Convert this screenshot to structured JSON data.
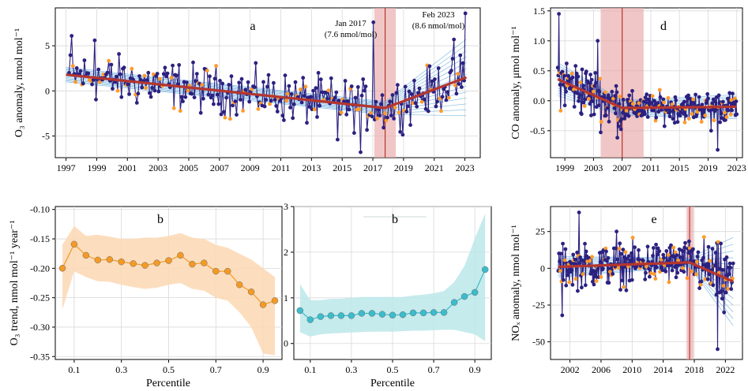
{
  "colors": {
    "series_dark": "#2b2180",
    "highlight": "#ff9a2b",
    "fit": "#b5362f",
    "ensemble": "#6aaedc",
    "band_red": "#e9a8a8",
    "orange": "#f49a24",
    "orange_band": "#fcd8b4",
    "teal": "#3bbccc",
    "teal_band": "#bce8ea",
    "grid": "#d9d9d9"
  },
  "chart_data": [
    {
      "id": "a",
      "type": "line",
      "panel_label": "a",
      "ylabel": "O₃ anomaly, nmol  mol⁻¹",
      "xlim": [
        1996.3,
        2024.0
      ],
      "ylim": [
        -7.4,
        9.2
      ],
      "xticks": [
        1997,
        1999,
        2001,
        2003,
        2005,
        2007,
        2009,
        2011,
        2013,
        2015,
        2017,
        2019,
        2021,
        2023
      ],
      "yticks": [
        -5,
        0,
        5
      ],
      "breakpoint": 2017.8,
      "breakpoint_band": [
        2017.1,
        2018.5
      ],
      "fit": [
        [
          1997.0,
          1.8
        ],
        [
          2017.8,
          -1.9
        ],
        [
          2023.1,
          1.5
        ]
      ],
      "annotations": [
        {
          "text1": "Jan 2017",
          "text2": "(7.6 nmol/mol)",
          "x": 2017.0,
          "y": 7.6
        },
        {
          "text1": "Feb 2023",
          "text2": "(8.6 nmol/mol)",
          "x": 2023.1,
          "y": 8.6
        }
      ]
    },
    {
      "id": "b1",
      "type": "line",
      "panel_label": "b",
      "xlabel": "Percentile",
      "ylabel": "O₃ trend, nmol  mol⁻¹ year⁻¹",
      "xlim": [
        0.02,
        0.98
      ],
      "ylim": [
        -0.355,
        -0.095
      ],
      "xticks": [
        "0.1",
        "0.3",
        "0.5",
        "0.7",
        "0.9"
      ],
      "yticks": [
        "-0.35",
        "-0.30",
        "-0.25",
        "-0.20",
        "-0.15",
        "-0.10"
      ],
      "x": [
        0.05,
        0.1,
        0.15,
        0.2,
        0.25,
        0.3,
        0.35,
        0.4,
        0.45,
        0.5,
        0.55,
        0.6,
        0.65,
        0.7,
        0.75,
        0.8,
        0.85,
        0.9,
        0.95
      ],
      "values": [
        -0.2,
        -0.159,
        -0.178,
        -0.186,
        -0.185,
        -0.189,
        -0.192,
        -0.195,
        -0.191,
        -0.187,
        -0.178,
        -0.193,
        -0.191,
        -0.205,
        -0.205,
        -0.228,
        -0.24,
        -0.262,
        -0.255
      ],
      "upper": [
        -0.16,
        -0.128,
        -0.145,
        -0.143,
        -0.146,
        -0.15,
        -0.15,
        -0.148,
        -0.148,
        -0.145,
        -0.14,
        -0.148,
        -0.15,
        -0.16,
        -0.165,
        -0.175,
        -0.185,
        -0.2,
        -0.215
      ],
      "lower": [
        -0.27,
        -0.205,
        -0.215,
        -0.222,
        -0.223,
        -0.228,
        -0.232,
        -0.235,
        -0.233,
        -0.228,
        -0.225,
        -0.235,
        -0.238,
        -0.25,
        -0.255,
        -0.275,
        -0.3,
        -0.345,
        -0.348
      ]
    },
    {
      "id": "b2",
      "type": "line",
      "panel_label": "b",
      "xlabel": "Percentile",
      "xlim": [
        0.02,
        0.98
      ],
      "ylim": [
        -0.35,
        3.0
      ],
      "xticks": [
        "0.1",
        "0.3",
        "0.5",
        "0.7",
        "0.9"
      ],
      "yticks": [
        "0",
        "1",
        "2",
        "3"
      ],
      "x": [
        0.05,
        0.1,
        0.15,
        0.2,
        0.25,
        0.3,
        0.35,
        0.4,
        0.45,
        0.5,
        0.55,
        0.6,
        0.65,
        0.7,
        0.75,
        0.8,
        0.85,
        0.9,
        0.95
      ],
      "values": [
        0.72,
        0.52,
        0.59,
        0.61,
        0.61,
        0.61,
        0.66,
        0.66,
        0.64,
        0.62,
        0.63,
        0.67,
        0.67,
        0.68,
        0.68,
        0.9,
        1.03,
        1.12,
        1.62
      ],
      "upper": [
        1.3,
        0.95,
        0.95,
        0.98,
        0.98,
        1.0,
        1.02,
        1.02,
        1.02,
        1.02,
        1.02,
        1.05,
        1.07,
        1.1,
        1.15,
        1.35,
        1.7,
        2.3,
        2.85
      ],
      "lower": [
        0.25,
        0.15,
        0.2,
        0.22,
        0.23,
        0.24,
        0.25,
        0.26,
        0.26,
        0.26,
        0.27,
        0.28,
        0.28,
        0.29,
        0.3,
        0.3,
        0.25,
        0.2,
        0.05
      ]
    },
    {
      "id": "d",
      "type": "line",
      "panel_label": "d",
      "ylabel": "CO anomaly, μmol  mol⁻¹",
      "xlim": [
        1997.0,
        2023.8
      ],
      "ylim": [
        -0.95,
        1.55
      ],
      "xticks": [
        1999,
        2003,
        2007,
        2011,
        2015,
        2019,
        2023
      ],
      "yticks": [
        "-0.5",
        "0.0",
        "0.5",
        "1.0",
        "1.5"
      ],
      "breakpoint": 2007.0,
      "breakpoint_band": [
        2004.0,
        2010.0
      ],
      "fit": [
        [
          1998.0,
          0.36
        ],
        [
          2007.0,
          -0.12
        ],
        [
          2023.0,
          -0.1
        ]
      ]
    },
    {
      "id": "e",
      "type": "line",
      "panel_label": "e",
      "ylabel": "NOₓ anomaly, nmol  mol⁻¹",
      "xlim": [
        1999.5,
        2024.2
      ],
      "ylim": [
        -62,
        42
      ],
      "xticks": [
        2002,
        2006,
        2010,
        2014,
        2018,
        2022
      ],
      "yticks": [
        "-50",
        "-25",
        "0",
        "25"
      ],
      "breakpoint": 2017.4,
      "breakpoint_band": [
        2017.0,
        2017.9
      ],
      "fit": [
        [
          2000.5,
          1.0
        ],
        [
          2017.4,
          4.0
        ],
        [
          2023.0,
          -9.0
        ]
      ]
    }
  ]
}
